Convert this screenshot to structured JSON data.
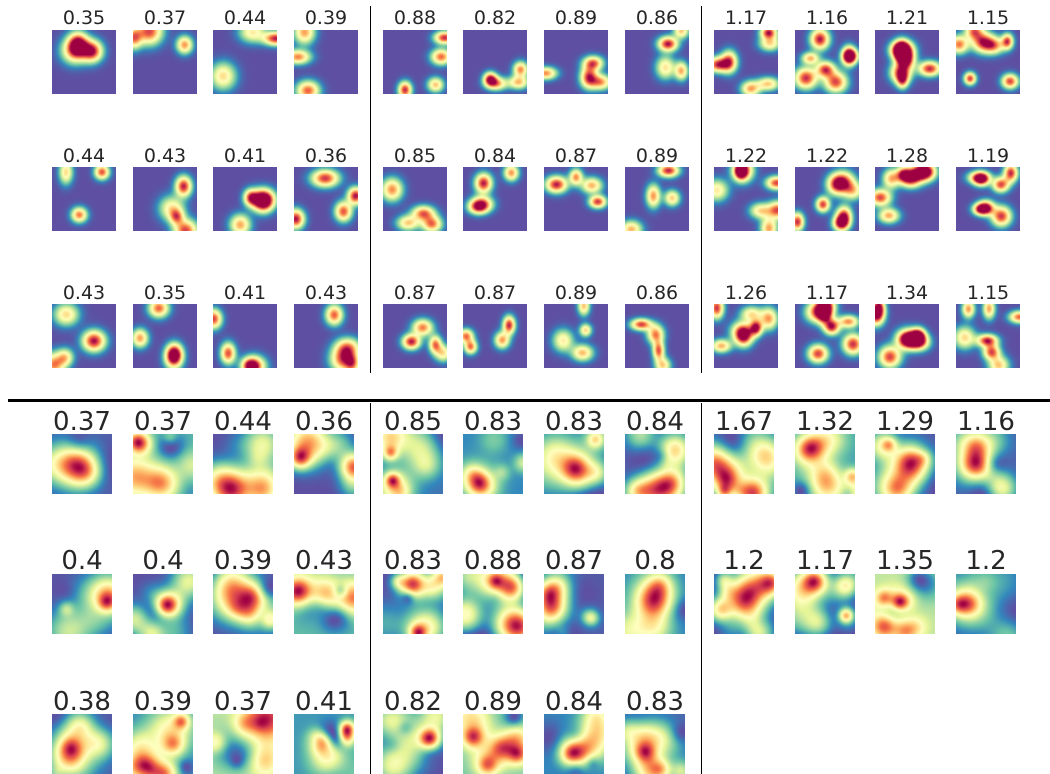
{
  "chart_data": [
    {
      "type": "heatmap",
      "description_panels": "grid of 3 rows x 12 rate-map panels, titled with scores",
      "groups": [
        {
          "scores": [
            [
              0.35,
              0.37,
              0.44,
              0.39
            ],
            [
              0.44,
              0.43,
              0.41,
              0.36
            ],
            [
              0.43,
              0.35,
              0.41,
              0.43
            ]
          ]
        },
        {
          "scores": [
            [
              0.88,
              0.82,
              0.89,
              0.86
            ],
            [
              0.85,
              0.84,
              0.87,
              0.89
            ],
            [
              0.87,
              0.87,
              0.89,
              0.86
            ]
          ]
        },
        {
          "scores": [
            [
              1.17,
              1.16,
              1.21,
              1.15
            ],
            [
              1.22,
              1.22,
              1.28,
              1.19
            ],
            [
              1.26,
              1.17,
              1.34,
              1.15
            ]
          ]
        }
      ],
      "labels": [
        [
          "0.35",
          "0.37",
          "0.44",
          "0.39",
          "0.88",
          "0.82",
          "0.89",
          "0.86",
          "1.17",
          "1.16",
          "1.21",
          "1.15"
        ],
        [
          "0.44",
          "0.43",
          "0.41",
          "0.36",
          "0.85",
          "0.84",
          "0.87",
          "0.89",
          "1.22",
          "1.22",
          "1.28",
          "1.19"
        ],
        [
          "0.43",
          "0.35",
          "0.41",
          "0.43",
          "0.87",
          "0.87",
          "0.89",
          "0.86",
          "1.26",
          "1.17",
          "1.34",
          "1.15"
        ]
      ],
      "colormap": "Spectral_r",
      "background_color": "#5e4fa2"
    },
    {
      "type": "heatmap",
      "labels": [
        [
          "0.37",
          "0.37",
          "0.44",
          "0.36",
          "0.85",
          "0.83",
          "0.83",
          "0.84",
          "1.67",
          "1.32",
          "1.29",
          "1.16"
        ],
        [
          "0.4",
          "0.4",
          "0.39",
          "0.43",
          "0.83",
          "0.88",
          "0.87",
          "0.8",
          "1.2",
          "1.17",
          "1.35",
          "1.2"
        ],
        [
          "0.38",
          "0.39",
          "0.37",
          "0.41",
          "0.82",
          "0.89",
          "0.84",
          "0.83",
          "",
          "",
          "",
          ""
        ]
      ],
      "colormap": "Spectral_r"
    }
  ]
}
